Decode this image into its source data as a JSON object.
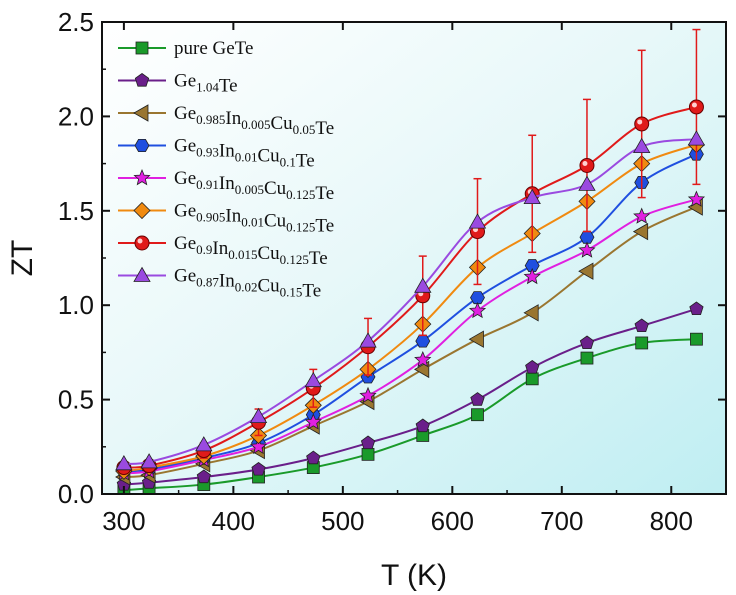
{
  "chart_data": {
    "type": "line",
    "title": "",
    "xlabel": "T (K)",
    "ylabel": "ZT",
    "xlim": [
      280,
      850
    ],
    "ylim": [
      0,
      2.5
    ],
    "xticks": [
      300,
      400,
      500,
      600,
      700,
      800
    ],
    "yticks": [
      0.0,
      0.5,
      1.0,
      1.5,
      2.0,
      2.5
    ],
    "xtick_labels": [
      "300",
      "400",
      "500",
      "600",
      "700",
      "800"
    ],
    "ytick_labels": [
      "0.0",
      "0.5",
      "1.0",
      "1.5",
      "2.0",
      "2.5"
    ],
    "legend_position": "top-left",
    "x": [
      300,
      323,
      373,
      423,
      473,
      523,
      573,
      623,
      673,
      723,
      773,
      823
    ],
    "series": [
      {
        "name": "pure GeTe",
        "legend_parts": [
          [
            "pure GeTe",
            ""
          ]
        ],
        "color": "#1a9a2a",
        "marker": "square",
        "values": [
          0.02,
          0.03,
          0.05,
          0.09,
          0.14,
          0.21,
          0.31,
          0.42,
          0.61,
          0.72,
          0.8,
          0.82
        ]
      },
      {
        "name": "Ge1.04Te",
        "legend_parts": [
          [
            "Ge",
            "1.04"
          ],
          [
            "Te",
            ""
          ]
        ],
        "color": "#6a1f8a",
        "marker": "pentagon",
        "values": [
          0.05,
          0.06,
          0.09,
          0.13,
          0.19,
          0.27,
          0.36,
          0.5,
          0.67,
          0.8,
          0.89,
          0.98
        ]
      },
      {
        "name": "Ge0.985In0.005Cu0.05Te",
        "legend_parts": [
          [
            "Ge",
            "0.985"
          ],
          [
            "In",
            "0.005"
          ],
          [
            "Cu",
            "0.05"
          ],
          [
            "Te",
            ""
          ]
        ],
        "color": "#9a7630",
        "marker": "triangle-left",
        "values": [
          0.09,
          0.1,
          0.16,
          0.23,
          0.36,
          0.49,
          0.66,
          0.82,
          0.96,
          1.18,
          1.39,
          1.52
        ]
      },
      {
        "name": "Ge0.93In0.01Cu0.1Te",
        "legend_parts": [
          [
            "Ge",
            "0.93"
          ],
          [
            "In",
            "0.01"
          ],
          [
            "Cu",
            "0.1"
          ],
          [
            "Te",
            ""
          ]
        ],
        "color": "#1f4fe0",
        "marker": "hexagon",
        "values": [
          0.12,
          0.13,
          0.19,
          0.27,
          0.42,
          0.62,
          0.81,
          1.04,
          1.21,
          1.36,
          1.65,
          1.8
        ]
      },
      {
        "name": "Ge0.91In0.005Cu0.125Te",
        "legend_parts": [
          [
            "Ge",
            "0.91"
          ],
          [
            "In",
            "0.005"
          ],
          [
            "Cu",
            "0.125"
          ],
          [
            "Te",
            ""
          ]
        ],
        "color": "#e020e0",
        "marker": "star",
        "values": [
          0.11,
          0.12,
          0.18,
          0.25,
          0.38,
          0.52,
          0.71,
          0.97,
          1.15,
          1.29,
          1.47,
          1.56
        ]
      },
      {
        "name": "Ge0.905In0.01Cu0.125Te",
        "legend_parts": [
          [
            "Ge",
            "0.905"
          ],
          [
            "In",
            "0.01"
          ],
          [
            "Cu",
            "0.125"
          ],
          [
            "Te",
            ""
          ]
        ],
        "color": "#f08a10",
        "marker": "diamond",
        "values": [
          0.12,
          0.14,
          0.2,
          0.31,
          0.47,
          0.66,
          0.9,
          1.2,
          1.38,
          1.55,
          1.75,
          1.85
        ]
      },
      {
        "name": "Ge0.9In0.015Cu0.125Te",
        "legend_parts": [
          [
            "Ge",
            "0.9"
          ],
          [
            "In",
            "0.015"
          ],
          [
            "Cu",
            "0.125"
          ],
          [
            "Te",
            ""
          ]
        ],
        "color": "#e01a1a",
        "marker": "circle",
        "values": [
          0.14,
          0.15,
          0.23,
          0.38,
          0.56,
          0.78,
          1.05,
          1.39,
          1.59,
          1.74,
          1.96,
          2.05
        ],
        "error": [
          0.02,
          0.02,
          0.04,
          0.07,
          0.1,
          0.15,
          0.21,
          0.28,
          0.31,
          0.35,
          0.39,
          0.41
        ]
      },
      {
        "name": "Ge0.87In0.02Cu0.15Te",
        "legend_parts": [
          [
            "Ge",
            "0.87"
          ],
          [
            "In",
            "0.02"
          ],
          [
            "Cu",
            "0.15"
          ],
          [
            "Te",
            ""
          ]
        ],
        "color": "#9a4ae0",
        "marker": "triangle-up",
        "values": [
          0.16,
          0.17,
          0.26,
          0.41,
          0.6,
          0.81,
          1.1,
          1.44,
          1.57,
          1.64,
          1.84,
          1.88
        ]
      }
    ]
  }
}
